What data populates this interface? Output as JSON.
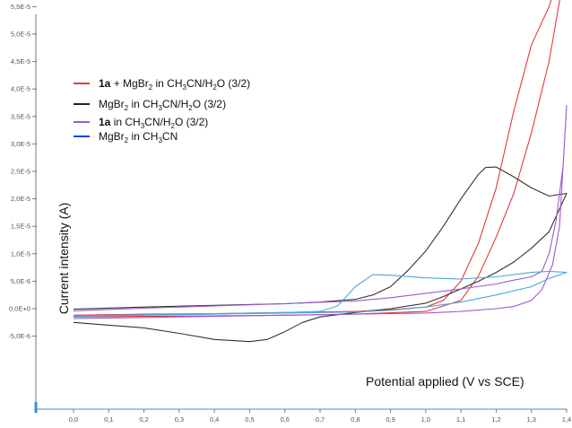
{
  "chart_data": {
    "type": "line",
    "xlabel": "Potential applied (V vs SCE)",
    "ylabel": "Current intensity (A)",
    "xlim": [
      0.0,
      1.4
    ],
    "ylim": [
      -7.5e-06,
      6.7e-05
    ],
    "x_ticks": [
      "0,0",
      "0,1",
      "0,2",
      "0,3",
      "0,4",
      "0,5",
      "0,6",
      "0,7",
      "0,8",
      "0,9",
      "1,0",
      "1,1",
      "1,2",
      "1,3",
      "1,4"
    ],
    "y_ticks": [
      "-5,0E-6",
      "0,0E+0",
      "5,0E-6",
      "1,0E-5",
      "1,5E-5",
      "2,0E-5",
      "2,5E-5",
      "3,0E-5",
      "3,5E-5",
      "4,0E-5",
      "4,5E-5",
      "5,0E-5",
      "5,5E-5",
      "6,0E-5",
      "6,5E-5"
    ],
    "legend": [
      {
        "bold": "1a",
        "pre": " + MgBr",
        "sub1": "2",
        "mid": " in CH",
        "sub2": "3",
        "mid2": "CN/H",
        "sub3": "2",
        "post": "O (3/2)",
        "color": "#e8383d"
      },
      {
        "bold": "",
        "pre": "MgBr",
        "sub1": "2",
        "mid": " in CH",
        "sub2": "3",
        "mid2": "CN/H",
        "sub3": "2",
        "post": "O (3/2)",
        "color": "#222222"
      },
      {
        "bold": "1a",
        "pre": " in CH",
        "sub1": "3",
        "mid": "CN/H",
        "sub2": "2",
        "mid2": "O (3/2)",
        "sub3": "",
        "post": "",
        "color": "#9b59d0"
      },
      {
        "bold": "",
        "pre": "MgBr",
        "sub1": "2",
        "mid": " in  CH",
        "sub2": "3",
        "mid2": "CN",
        "sub3": "",
        "post": "",
        "color": "#1f3fe0"
      }
    ],
    "series": [
      {
        "color": "#e8383d",
        "fwd": [
          [
            0.0,
            -1.2e-06
          ],
          [
            0.2,
            -1e-06
          ],
          [
            0.4,
            -9e-07
          ],
          [
            0.6,
            -7e-07
          ],
          [
            0.8,
            -5e-07
          ],
          [
            0.9,
            -2e-07
          ],
          [
            1.0,
            3e-07
          ],
          [
            1.05,
            1.5e-06
          ],
          [
            1.1,
            5e-06
          ],
          [
            1.15,
            1.2e-05
          ],
          [
            1.2,
            2.2e-05
          ],
          [
            1.25,
            3.6e-05
          ],
          [
            1.3,
            4.8e-05
          ],
          [
            1.35,
            5.5e-05
          ],
          [
            1.4,
            6.5e-05
          ]
        ],
        "rev": [
          [
            1.4,
            6.5e-05
          ],
          [
            1.38,
            5.6e-05
          ],
          [
            1.35,
            4.5e-05
          ],
          [
            1.3,
            3.2e-05
          ],
          [
            1.25,
            2.1e-05
          ],
          [
            1.2,
            1.3e-05
          ],
          [
            1.15,
            6e-06
          ],
          [
            1.1,
            1.5e-06
          ],
          [
            1.0,
            -5e-07
          ],
          [
            0.8,
            -1e-06
          ],
          [
            0.6,
            -1.2e-06
          ],
          [
            0.4,
            -1.3e-06
          ],
          [
            0.2,
            -1.4e-06
          ],
          [
            0.0,
            -1.5e-06
          ]
        ]
      },
      {
        "color": "#333333",
        "fwd": [
          [
            0.0,
            -2.5e-06
          ],
          [
            0.1,
            -3e-06
          ],
          [
            0.2,
            -3.5e-06
          ],
          [
            0.3,
            -4.5e-06
          ],
          [
            0.4,
            -5.6e-06
          ],
          [
            0.5,
            -6e-06
          ],
          [
            0.55,
            -5.6e-06
          ],
          [
            0.6,
            -4.2e-06
          ],
          [
            0.65,
            -2.5e-06
          ],
          [
            0.7,
            -1.5e-06
          ],
          [
            0.8,
            -7e-07
          ],
          [
            0.9,
            0.0
          ],
          [
            1.0,
            1e-06
          ],
          [
            1.05,
            2.2e-06
          ],
          [
            1.1,
            3.6e-06
          ],
          [
            1.15,
            5e-06
          ],
          [
            1.2,
            6.6e-06
          ],
          [
            1.25,
            8.5e-06
          ],
          [
            1.3,
            1.1e-05
          ],
          [
            1.35,
            1.4e-05
          ],
          [
            1.4,
            2.1e-05
          ]
        ],
        "rev": [
          [
            1.4,
            2.1e-05
          ],
          [
            1.35,
            2.05e-05
          ],
          [
            1.3,
            2.2e-05
          ],
          [
            1.25,
            2.4e-05
          ],
          [
            1.2,
            2.58e-05
          ],
          [
            1.17,
            2.57e-05
          ],
          [
            1.15,
            2.45e-05
          ],
          [
            1.1,
            2e-05
          ],
          [
            1.05,
            1.5e-05
          ],
          [
            1.0,
            1.05e-05
          ],
          [
            0.95,
            7e-06
          ],
          [
            0.9,
            4e-06
          ],
          [
            0.85,
            2.5e-06
          ],
          [
            0.8,
            1.7e-06
          ],
          [
            0.7,
            1.2e-06
          ],
          [
            0.6,
            9e-07
          ],
          [
            0.4,
            6e-07
          ],
          [
            0.2,
            3e-07
          ],
          [
            0.0,
            -1e-07
          ]
        ]
      },
      {
        "color": "#9b59d0",
        "fwd": [
          [
            0.0,
            -1.8e-06
          ],
          [
            0.2,
            -1.6e-06
          ],
          [
            0.4,
            -1.4e-06
          ],
          [
            0.6,
            -1.2e-06
          ],
          [
            0.8,
            -1e-06
          ],
          [
            1.0,
            -8e-07
          ],
          [
            1.1,
            -5e-07
          ],
          [
            1.2,
            0.0
          ],
          [
            1.25,
            4e-07
          ],
          [
            1.3,
            1.5e-06
          ],
          [
            1.33,
            3.5e-06
          ],
          [
            1.36,
            8e-06
          ],
          [
            1.38,
            1.5e-05
          ],
          [
            1.4,
            3.7e-05
          ]
        ],
        "rev": [
          [
            1.4,
            3.7e-05
          ],
          [
            1.39,
            2.6e-05
          ],
          [
            1.37,
            1.6e-05
          ],
          [
            1.35,
            1e-05
          ],
          [
            1.33,
            6.8e-06
          ],
          [
            1.3,
            5.8e-06
          ],
          [
            1.25,
            5.2e-06
          ],
          [
            1.2,
            4.5e-06
          ],
          [
            1.1,
            3.6e-06
          ],
          [
            1.0,
            2.8e-06
          ],
          [
            0.9,
            2e-06
          ],
          [
            0.8,
            1.4e-06
          ],
          [
            0.6,
            9e-07
          ],
          [
            0.4,
            5e-07
          ],
          [
            0.2,
            1e-07
          ],
          [
            0.0,
            -4e-07
          ]
        ]
      },
      {
        "color": "#4aa8d8",
        "fwd": [
          [
            0.0,
            -1.3e-06
          ],
          [
            0.2,
            -1.1e-06
          ],
          [
            0.4,
            -9e-07
          ],
          [
            0.6,
            -7e-07
          ],
          [
            0.7,
            -5e-07
          ],
          [
            0.75,
            5e-07
          ],
          [
            0.8,
            4e-06
          ],
          [
            0.85,
            6.2e-06
          ],
          [
            0.9,
            6.1e-06
          ],
          [
            1.0,
            5.6e-06
          ],
          [
            1.1,
            5.4e-06
          ],
          [
            1.2,
            5.8e-06
          ],
          [
            1.3,
            6.6e-06
          ],
          [
            1.35,
            6.8e-06
          ],
          [
            1.4,
            6.6e-06
          ]
        ],
        "rev": [
          [
            1.4,
            6.6e-06
          ],
          [
            1.35,
            5.5e-06
          ],
          [
            1.3,
            4e-06
          ],
          [
            1.2,
            2.5e-06
          ],
          [
            1.1,
            1.2e-06
          ],
          [
            1.0,
            3e-07
          ],
          [
            0.9,
            -3e-07
          ],
          [
            0.8,
            -6e-07
          ],
          [
            0.6,
            -8e-07
          ],
          [
            0.4,
            -1e-06
          ],
          [
            0.2,
            -1.2e-06
          ],
          [
            0.0,
            -1.4e-06
          ]
        ]
      }
    ]
  }
}
